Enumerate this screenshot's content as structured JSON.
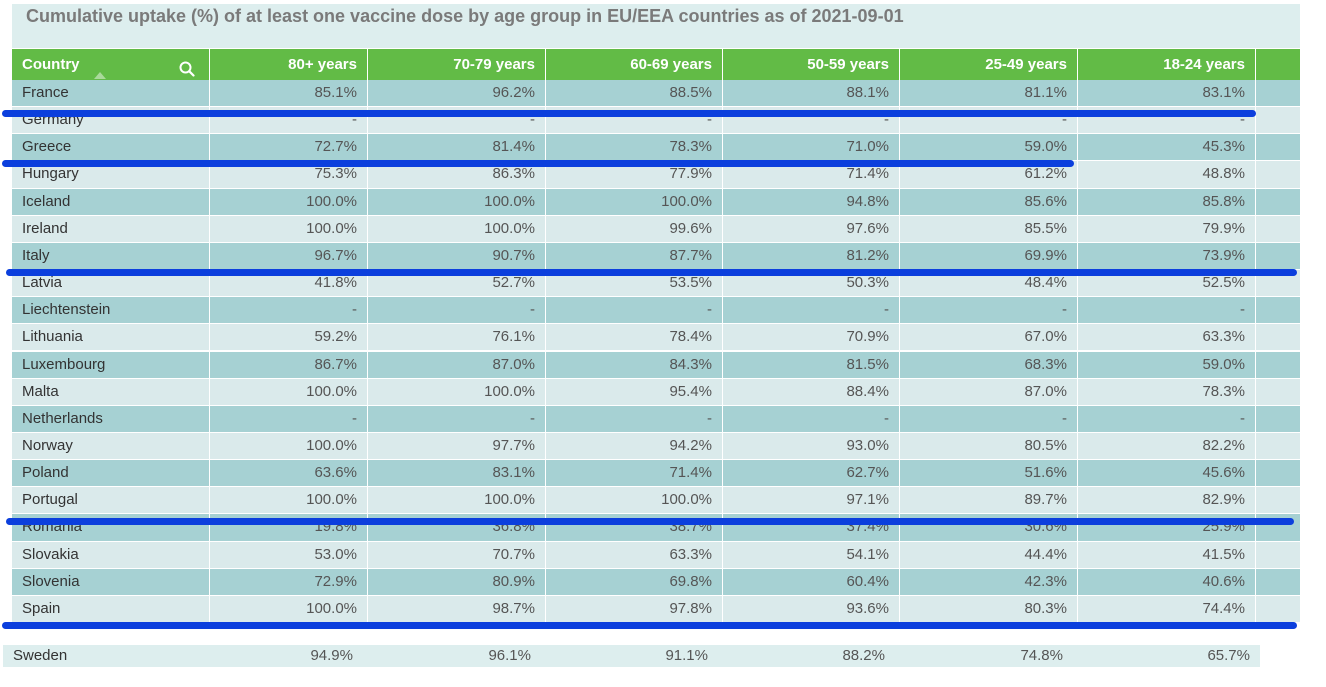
{
  "title": "Cumulative uptake (%) of at least one vaccine dose by age group in EU/EEA countries as of 2021-09-01",
  "columns": [
    "Country",
    "80+ years",
    "70-79 years",
    "60-69 years",
    "50-59 years",
    "25-49 years",
    "18-24 years"
  ],
  "icons": {
    "search": "search-icon",
    "sort": "sort-ascending-icon"
  },
  "colors": {
    "header_bg": "#62bb46",
    "row_dark": "#a6d1d3",
    "row_light": "#daeaeb",
    "annotation_line": "#0b3fdd"
  },
  "rows": [
    [
      "France",
      "85.1%",
      "96.2%",
      "88.5%",
      "88.1%",
      "81.1%",
      "83.1%"
    ],
    [
      "Germany",
      "-",
      "-",
      "-",
      "-",
      "-",
      "-"
    ],
    [
      "Greece",
      "72.7%",
      "81.4%",
      "78.3%",
      "71.0%",
      "59.0%",
      "45.3%"
    ],
    [
      "Hungary",
      "75.3%",
      "86.3%",
      "77.9%",
      "71.4%",
      "61.2%",
      "48.8%"
    ],
    [
      "Iceland",
      "100.0%",
      "100.0%",
      "100.0%",
      "94.8%",
      "85.6%",
      "85.8%"
    ],
    [
      "Ireland",
      "100.0%",
      "100.0%",
      "99.6%",
      "97.6%",
      "85.5%",
      "79.9%"
    ],
    [
      "Italy",
      "96.7%",
      "90.7%",
      "87.7%",
      "81.2%",
      "69.9%",
      "73.9%"
    ],
    [
      "Latvia",
      "41.8%",
      "52.7%",
      "53.5%",
      "50.3%",
      "48.4%",
      "52.5%"
    ],
    [
      "Liechtenstein",
      "-",
      "-",
      "-",
      "-",
      "-",
      "-"
    ],
    [
      "Lithuania",
      "59.2%",
      "76.1%",
      "78.4%",
      "70.9%",
      "67.0%",
      "63.3%"
    ],
    [
      "Luxembourg",
      "86.7%",
      "87.0%",
      "84.3%",
      "81.5%",
      "68.3%",
      "59.0%"
    ],
    [
      "Malta",
      "100.0%",
      "100.0%",
      "95.4%",
      "88.4%",
      "87.0%",
      "78.3%"
    ],
    [
      "Netherlands",
      "-",
      "-",
      "-",
      "-",
      "-",
      "-"
    ],
    [
      "Norway",
      "100.0%",
      "97.7%",
      "94.2%",
      "93.0%",
      "80.5%",
      "82.2%"
    ],
    [
      "Poland",
      "63.6%",
      "83.1%",
      "71.4%",
      "62.7%",
      "51.6%",
      "45.6%"
    ],
    [
      "Portugal",
      "100.0%",
      "100.0%",
      "100.0%",
      "97.1%",
      "89.7%",
      "82.9%"
    ],
    [
      "Romania",
      "19.8%",
      "36.8%",
      "38.7%",
      "37.4%",
      "30.6%",
      "25.9%"
    ],
    [
      "Slovakia",
      "53.0%",
      "70.7%",
      "63.3%",
      "54.1%",
      "44.4%",
      "41.5%"
    ],
    [
      "Slovenia",
      "72.9%",
      "80.9%",
      "69.8%",
      "60.4%",
      "42.3%",
      "40.6%"
    ],
    [
      "Spain",
      "100.0%",
      "98.7%",
      "97.8%",
      "93.6%",
      "80.3%",
      "74.4%"
    ],
    [
      "Sweden",
      "94.9%",
      "96.1%",
      "91.1%",
      "88.2%",
      "74.8%",
      "65.7%"
    ]
  ],
  "chart_data": {
    "type": "table",
    "title": "Cumulative uptake (%) of at least one vaccine dose by age group in EU/EEA countries as of 2021-09-01",
    "categories": [
      "France",
      "Germany",
      "Greece",
      "Hungary",
      "Iceland",
      "Ireland",
      "Italy",
      "Latvia",
      "Liechtenstein",
      "Lithuania",
      "Luxembourg",
      "Malta",
      "Netherlands",
      "Norway",
      "Poland",
      "Portugal",
      "Romania",
      "Slovakia",
      "Slovenia",
      "Spain",
      "Sweden"
    ],
    "series": [
      {
        "name": "80+ years",
        "values": [
          85.1,
          null,
          72.7,
          75.3,
          100.0,
          100.0,
          96.7,
          41.8,
          null,
          59.2,
          86.7,
          100.0,
          null,
          100.0,
          63.6,
          100.0,
          19.8,
          53.0,
          72.9,
          100.0,
          94.9
        ]
      },
      {
        "name": "70-79 years",
        "values": [
          96.2,
          null,
          81.4,
          86.3,
          100.0,
          100.0,
          90.7,
          52.7,
          null,
          76.1,
          87.0,
          100.0,
          null,
          97.7,
          83.1,
          100.0,
          36.8,
          70.7,
          80.9,
          98.7,
          96.1
        ]
      },
      {
        "name": "60-69 years",
        "values": [
          88.5,
          null,
          78.3,
          77.9,
          100.0,
          99.6,
          87.7,
          53.5,
          null,
          78.4,
          84.3,
          95.4,
          null,
          94.2,
          71.4,
          100.0,
          38.7,
          63.3,
          69.8,
          97.8,
          91.1
        ]
      },
      {
        "name": "50-59 years",
        "values": [
          88.1,
          null,
          71.0,
          71.4,
          94.8,
          97.6,
          81.2,
          50.3,
          null,
          70.9,
          81.5,
          88.4,
          null,
          93.0,
          62.7,
          97.1,
          37.4,
          54.1,
          60.4,
          93.6,
          88.2
        ]
      },
      {
        "name": "25-49 years",
        "values": [
          81.1,
          null,
          59.0,
          61.2,
          85.6,
          85.5,
          69.9,
          48.4,
          null,
          67.0,
          68.3,
          87.0,
          null,
          80.5,
          51.6,
          89.7,
          30.6,
          44.4,
          42.3,
          80.3,
          74.8
        ]
      },
      {
        "name": "18-24 years",
        "values": [
          83.1,
          null,
          45.3,
          48.8,
          85.8,
          79.9,
          73.9,
          52.5,
          null,
          63.3,
          59.0,
          78.3,
          null,
          82.2,
          45.6,
          82.9,
          25.9,
          41.5,
          40.6,
          74.4,
          65.7
        ]
      }
    ]
  }
}
